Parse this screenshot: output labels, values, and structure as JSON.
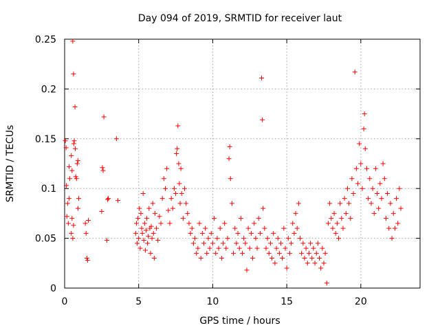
{
  "chart_data": {
    "type": "scatter",
    "title": "Day 094 of 2019, SRMTID for receiver laut",
    "xlabel": "GPS time / hours",
    "ylabel": "SRMTID / TECUs",
    "xlim": [
      0,
      24
    ],
    "ylim": [
      0,
      0.25
    ],
    "x_ticks": [
      0,
      5,
      10,
      15,
      20
    ],
    "x_tick_labels": [
      "0",
      "5",
      "10",
      "15",
      "20"
    ],
    "y_ticks": [
      0,
      0.05,
      0.1,
      0.15,
      0.2,
      0.25
    ],
    "y_tick_labels": [
      "0",
      "0.05",
      "0.1",
      "0.15",
      "0.2",
      "0.25"
    ],
    "grid": true,
    "marker": "+",
    "marker_color": "#ff0000",
    "series": [
      {
        "name": "SRMTID",
        "description_points": "scattered measurements",
        "points": [
          [
            0.05,
            0.148
          ],
          [
            0.1,
            0.141
          ],
          [
            0.12,
            0.103
          ],
          [
            0.15,
            0.072
          ],
          [
            0.2,
            0.085
          ],
          [
            0.3,
            0.122
          ],
          [
            0.35,
            0.11
          ],
          [
            0.45,
            0.133
          ],
          [
            0.5,
            0.118
          ],
          [
            0.55,
            0.248
          ],
          [
            0.6,
            0.215
          ],
          [
            0.62,
            0.145
          ],
          [
            0.65,
            0.148
          ],
          [
            0.7,
            0.182
          ],
          [
            0.72,
            0.14
          ],
          [
            0.75,
            0.112
          ],
          [
            0.8,
            0.11
          ],
          [
            0.85,
            0.125
          ],
          [
            0.9,
            0.128
          ],
          [
            0.95,
            0.09
          ],
          [
            0.3,
            0.09
          ],
          [
            0.45,
            0.055
          ],
          [
            0.5,
            0.07
          ],
          [
            0.55,
            0.05
          ],
          [
            0.6,
            0.063
          ],
          [
            0.25,
            0.065
          ],
          [
            0.9,
            0.08
          ],
          [
            1.4,
            0.065
          ],
          [
            1.45,
            0.055
          ],
          [
            1.5,
            0.03
          ],
          [
            1.55,
            0.028
          ],
          [
            1.6,
            0.068
          ],
          [
            2.5,
            0.077
          ],
          [
            2.55,
            0.121
          ],
          [
            2.6,
            0.118
          ],
          [
            2.65,
            0.172
          ],
          [
            2.9,
            0.089
          ],
          [
            2.95,
            0.09
          ],
          [
            2.85,
            0.048
          ],
          [
            3.5,
            0.15
          ],
          [
            3.6,
            0.088
          ],
          [
            4.8,
            0.055
          ],
          [
            4.85,
            0.065
          ],
          [
            4.9,
            0.045
          ],
          [
            4.95,
            0.07
          ],
          [
            5.0,
            0.05
          ],
          [
            5.05,
            0.08
          ],
          [
            5.1,
            0.04
          ],
          [
            5.15,
            0.075
          ],
          [
            5.2,
            0.06
          ],
          [
            5.25,
            0.055
          ],
          [
            5.3,
            0.095
          ],
          [
            5.35,
            0.048
          ],
          [
            5.4,
            0.065
          ],
          [
            5.45,
            0.038
          ],
          [
            5.5,
            0.058
          ],
          [
            5.55,
            0.07
          ],
          [
            5.6,
            0.045
          ],
          [
            5.65,
            0.052
          ],
          [
            5.7,
            0.08
          ],
          [
            5.75,
            0.06
          ],
          [
            5.8,
            0.035
          ],
          [
            5.85,
            0.062
          ],
          [
            5.9,
            0.05
          ],
          [
            5.95,
            0.085
          ],
          [
            6.0,
            0.055
          ],
          [
            6.05,
            0.03
          ],
          [
            6.1,
            0.075
          ],
          [
            6.2,
            0.06
          ],
          [
            6.3,
            0.048
          ],
          [
            6.4,
            0.072
          ],
          [
            6.5,
            0.065
          ],
          [
            6.6,
            0.09
          ],
          [
            6.7,
            0.11
          ],
          [
            6.8,
            0.1
          ],
          [
            6.9,
            0.12
          ],
          [
            7.0,
            0.078
          ],
          [
            7.1,
            0.065
          ],
          [
            7.2,
            0.09
          ],
          [
            7.3,
            0.08
          ],
          [
            7.4,
            0.1
          ],
          [
            7.5,
            0.095
          ],
          [
            7.55,
            0.135
          ],
          [
            7.6,
            0.14
          ],
          [
            7.65,
            0.163
          ],
          [
            7.7,
            0.125
          ],
          [
            7.75,
            0.105
          ],
          [
            7.8,
            0.085
          ],
          [
            7.85,
            0.12
          ],
          [
            7.9,
            0.095
          ],
          [
            8.0,
            0.07
          ],
          [
            8.1,
            0.1
          ],
          [
            8.2,
            0.085
          ],
          [
            8.3,
            0.075
          ],
          [
            8.4,
            0.065
          ],
          [
            8.5,
            0.055
          ],
          [
            8.6,
            0.06
          ],
          [
            8.7,
            0.045
          ],
          [
            8.8,
            0.05
          ],
          [
            8.9,
            0.035
          ],
          [
            9.0,
            0.04
          ],
          [
            9.1,
            0.065
          ],
          [
            9.2,
            0.03
          ],
          [
            9.3,
            0.055
          ],
          [
            9.4,
            0.045
          ],
          [
            9.5,
            0.06
          ],
          [
            9.6,
            0.035
          ],
          [
            9.7,
            0.05
          ],
          [
            9.8,
            0.04
          ],
          [
            9.9,
            0.055
          ],
          [
            10.0,
            0.045
          ],
          [
            10.1,
            0.07
          ],
          [
            10.2,
            0.035
          ],
          [
            10.3,
            0.05
          ],
          [
            10.4,
            0.04
          ],
          [
            10.5,
            0.06
          ],
          [
            10.6,
            0.03
          ],
          [
            10.7,
            0.045
          ],
          [
            10.8,
            0.065
          ],
          [
            10.9,
            0.04
          ],
          [
            11.0,
            0.05
          ],
          [
            11.1,
            0.13
          ],
          [
            11.15,
            0.142
          ],
          [
            11.2,
            0.11
          ],
          [
            11.3,
            0.085
          ],
          [
            11.4,
            0.035
          ],
          [
            11.5,
            0.06
          ],
          [
            11.6,
            0.045
          ],
          [
            11.7,
            0.055
          ],
          [
            11.8,
            0.04
          ],
          [
            11.9,
            0.07
          ],
          [
            12.0,
            0.035
          ],
          [
            12.1,
            0.05
          ],
          [
            12.2,
            0.045
          ],
          [
            12.3,
            0.018
          ],
          [
            12.4,
            0.06
          ],
          [
            12.5,
            0.04
          ],
          [
            12.6,
            0.055
          ],
          [
            12.7,
            0.03
          ],
          [
            12.8,
            0.065
          ],
          [
            12.9,
            0.05
          ],
          [
            13.0,
            0.04
          ],
          [
            13.1,
            0.07
          ],
          [
            13.2,
            0.055
          ],
          [
            13.3,
            0.211
          ],
          [
            13.35,
            0.169
          ],
          [
            13.4,
            0.08
          ],
          [
            13.5,
            0.06
          ],
          [
            13.6,
            0.04
          ],
          [
            13.7,
            0.05
          ],
          [
            13.8,
            0.035
          ],
          [
            13.9,
            0.045
          ],
          [
            14.0,
            0.03
          ],
          [
            14.1,
            0.055
          ],
          [
            14.2,
            0.025
          ],
          [
            14.3,
            0.04
          ],
          [
            14.4,
            0.05
          ],
          [
            14.5,
            0.035
          ],
          [
            14.6,
            0.045
          ],
          [
            14.7,
            0.03
          ],
          [
            14.8,
            0.06
          ],
          [
            14.9,
            0.04
          ],
          [
            15.0,
            0.02
          ],
          [
            15.1,
            0.05
          ],
          [
            15.2,
            0.035
          ],
          [
            15.3,
            0.045
          ],
          [
            15.4,
            0.065
          ],
          [
            15.5,
            0.055
          ],
          [
            15.6,
            0.075
          ],
          [
            15.7,
            0.06
          ],
          [
            15.8,
            0.085
          ],
          [
            15.9,
            0.05
          ],
          [
            16.0,
            0.035
          ],
          [
            16.1,
            0.045
          ],
          [
            16.2,
            0.03
          ],
          [
            16.3,
            0.04
          ],
          [
            16.4,
            0.025
          ],
          [
            16.5,
            0.035
          ],
          [
            16.6,
            0.045
          ],
          [
            16.7,
            0.03
          ],
          [
            16.8,
            0.04
          ],
          [
            16.9,
            0.025
          ],
          [
            17.0,
            0.035
          ],
          [
            17.1,
            0.045
          ],
          [
            17.2,
            0.03
          ],
          [
            17.3,
            0.02
          ],
          [
            17.4,
            0.04
          ],
          [
            17.5,
            0.025
          ],
          [
            17.6,
            0.035
          ],
          [
            17.7,
            0.005
          ],
          [
            17.8,
            0.065
          ],
          [
            17.9,
            0.085
          ],
          [
            18.0,
            0.07
          ],
          [
            18.1,
            0.06
          ],
          [
            18.2,
            0.075
          ],
          [
            18.3,
            0.055
          ],
          [
            18.4,
            0.065
          ],
          [
            18.5,
            0.05
          ],
          [
            18.6,
            0.085
          ],
          [
            18.7,
            0.07
          ],
          [
            18.8,
            0.06
          ],
          [
            18.9,
            0.09
          ],
          [
            19.0,
            0.075
          ],
          [
            19.1,
            0.1
          ],
          [
            19.2,
            0.085
          ],
          [
            19.3,
            0.07
          ],
          [
            19.4,
            0.11
          ],
          [
            19.5,
            0.095
          ],
          [
            19.6,
            0.217
          ],
          [
            19.7,
            0.12
          ],
          [
            19.8,
            0.105
          ],
          [
            19.9,
            0.145
          ],
          [
            20.0,
            0.125
          ],
          [
            20.1,
            0.1
          ],
          [
            20.2,
            0.16
          ],
          [
            20.25,
            0.175
          ],
          [
            20.3,
            0.14
          ],
          [
            20.4,
            0.12
          ],
          [
            20.5,
            0.09
          ],
          [
            20.6,
            0.11
          ],
          [
            20.7,
            0.085
          ],
          [
            20.8,
            0.1
          ],
          [
            20.9,
            0.075
          ],
          [
            21.0,
            0.12
          ],
          [
            21.1,
            0.095
          ],
          [
            21.2,
            0.08
          ],
          [
            21.3,
            0.105
          ],
          [
            21.4,
            0.09
          ],
          [
            21.5,
            0.125
          ],
          [
            21.6,
            0.11
          ],
          [
            21.7,
            0.07
          ],
          [
            21.8,
            0.095
          ],
          [
            21.9,
            0.06
          ],
          [
            22.0,
            0.085
          ],
          [
            22.1,
            0.05
          ],
          [
            22.2,
            0.075
          ],
          [
            22.3,
            0.06
          ],
          [
            22.4,
            0.09
          ],
          [
            22.5,
            0.065
          ],
          [
            22.6,
            0.1
          ],
          [
            22.7,
            0.08
          ]
        ]
      }
    ]
  }
}
